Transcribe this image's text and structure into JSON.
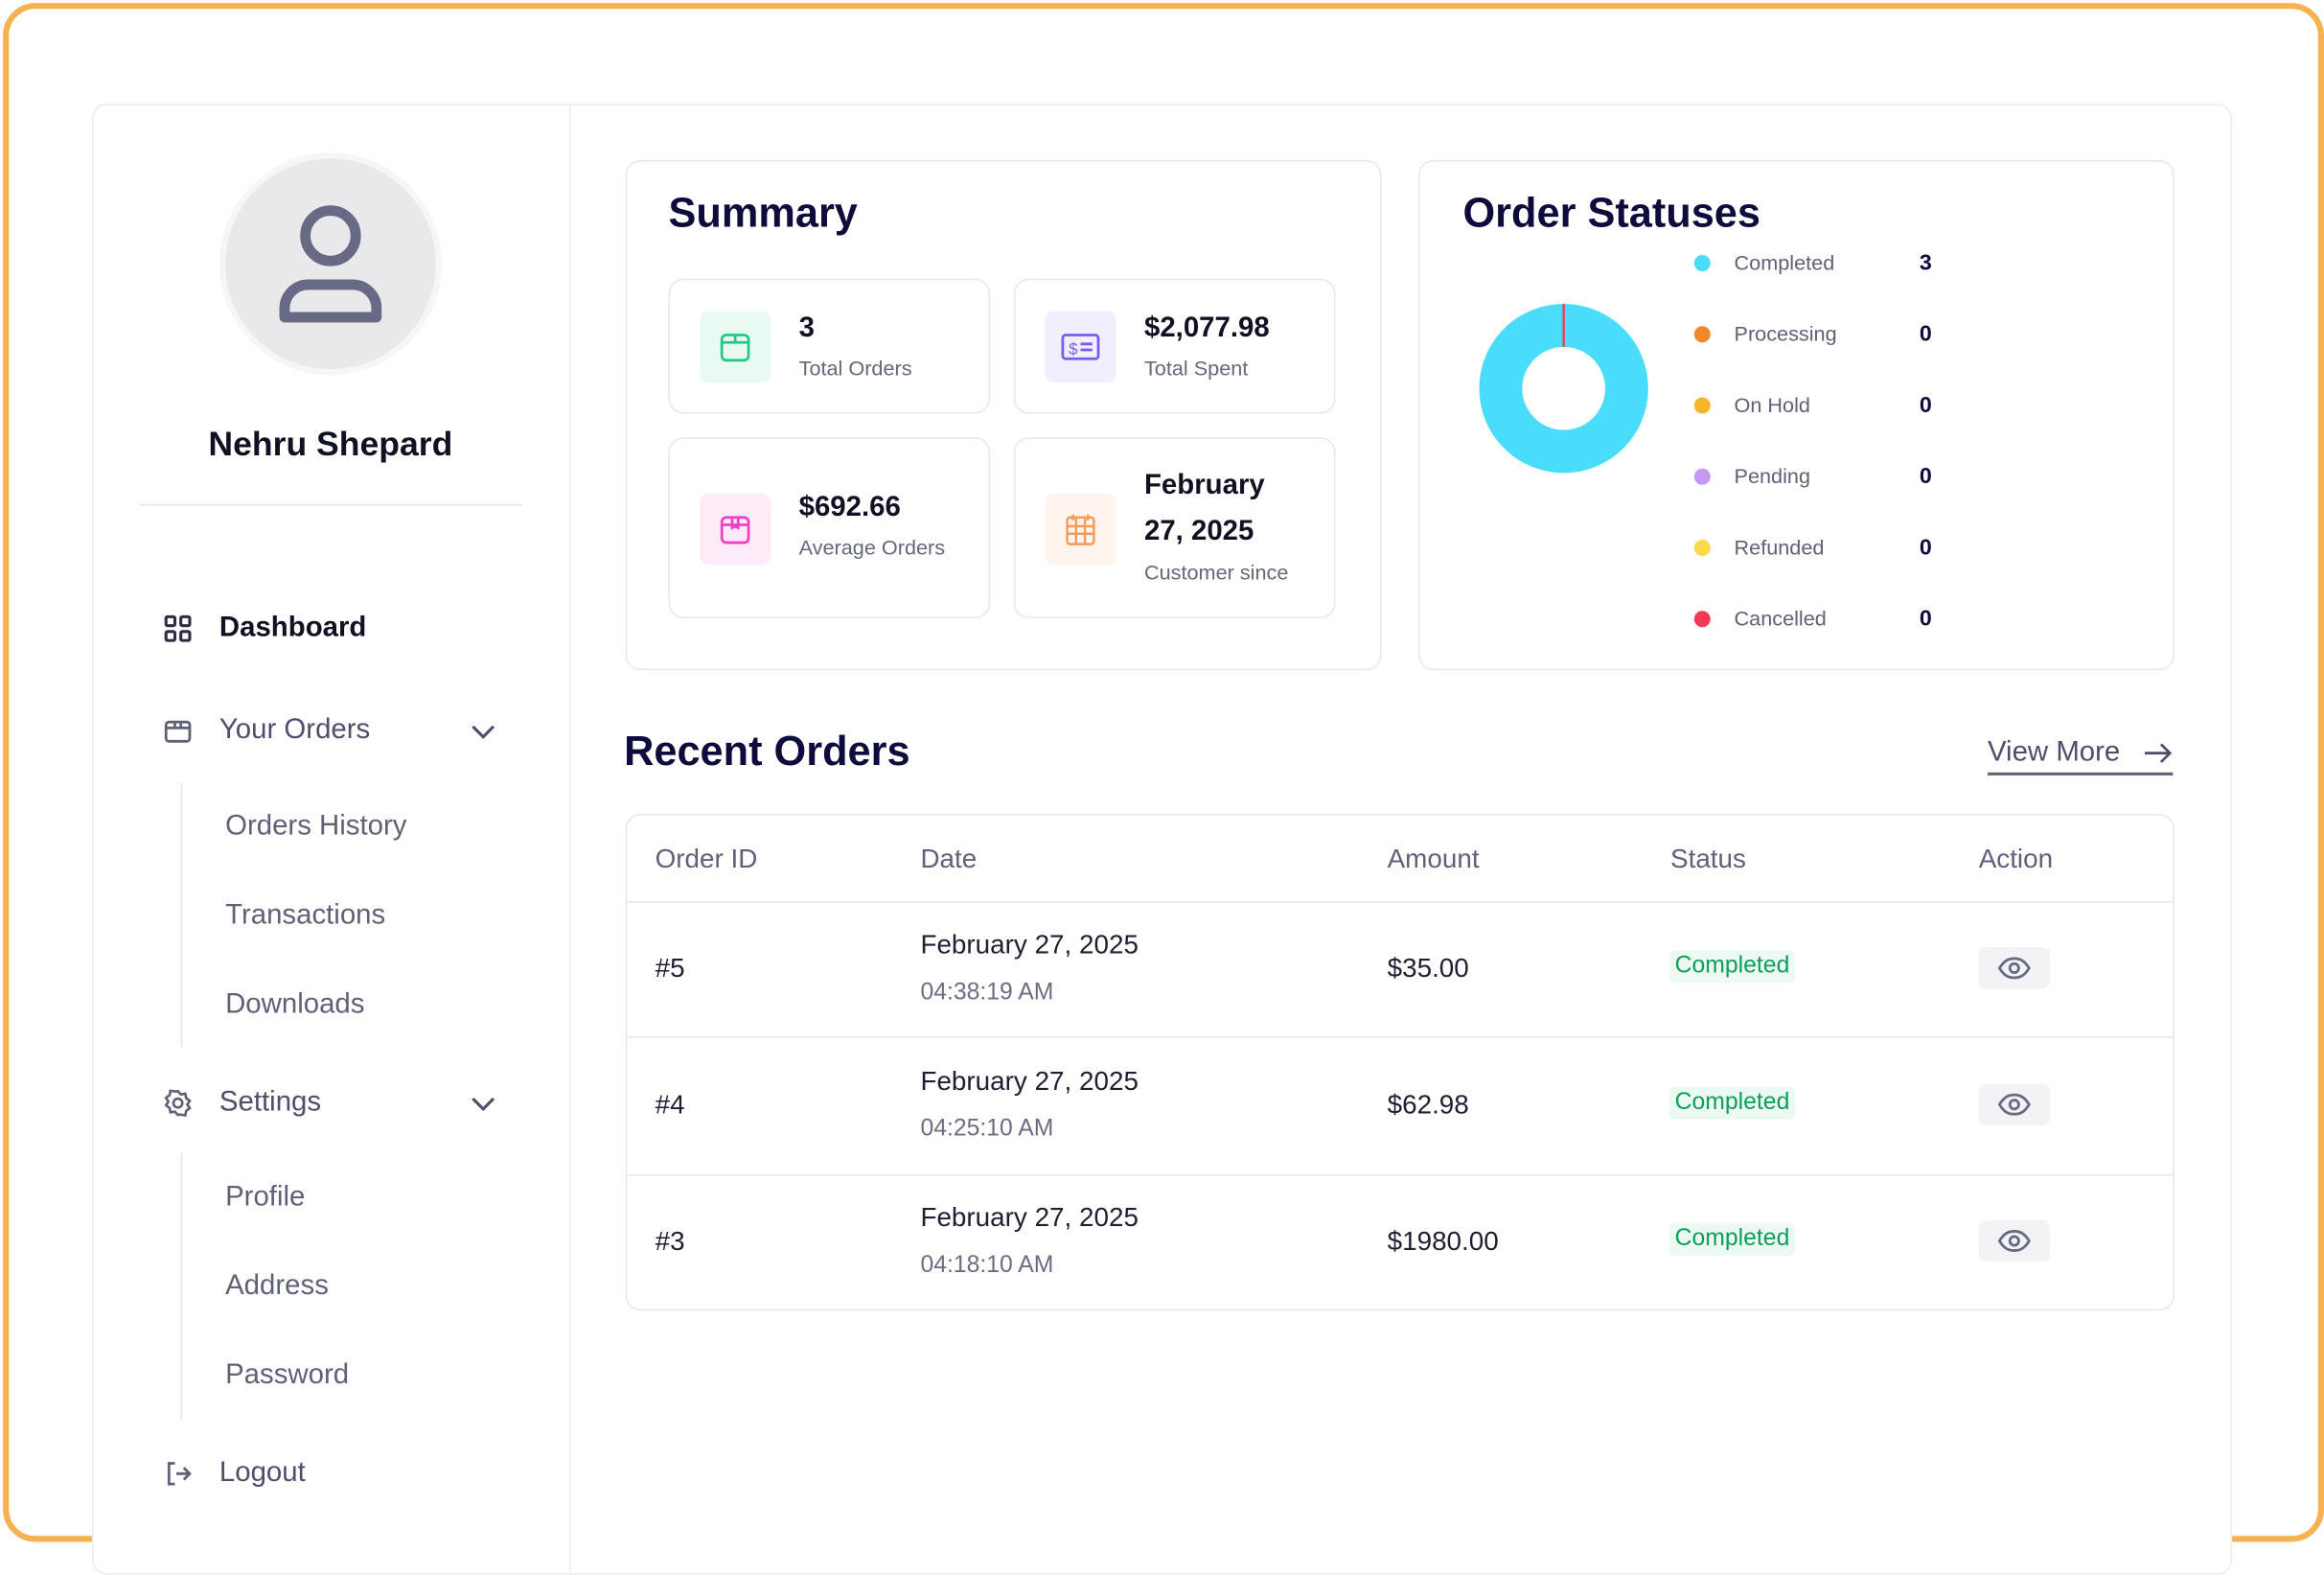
{
  "profile": {
    "name": "Nehru Shepard",
    "avatar_icon": "user-icon"
  },
  "sidebar": {
    "dashboard": "Dashboard",
    "your_orders": "Your Orders",
    "orders_sub": [
      "Orders History",
      "Transactions",
      "Downloads"
    ],
    "settings": "Settings",
    "settings_sub": [
      "Profile",
      "Address",
      "Password"
    ],
    "logout": "Logout"
  },
  "summary": {
    "title": "Summary",
    "stats": [
      {
        "value": "3",
        "label": "Total Orders",
        "icon": "box-icon",
        "color": "#22c98a",
        "bg": "#e8faf2"
      },
      {
        "value": "$2,077.98",
        "label": "Total Spent",
        "icon": "money-icon",
        "color": "#7b5cf0",
        "bg": "#f1eefe"
      },
      {
        "value": "$692.66",
        "label": "Average Orders",
        "icon": "package-icon",
        "color": "#f03ec8",
        "bg": "#fdebf8"
      },
      {
        "value_line1": "February",
        "value_line2": "27, 2025",
        "label": "Customer since",
        "icon": "calendar-icon",
        "color": "#f79a5a",
        "bg": "#fff5ee"
      }
    ]
  },
  "order_statuses": {
    "title": "Order Statuses",
    "chart_data": {
      "type": "pie",
      "donut": true,
      "categories": [
        "Completed",
        "Processing",
        "On Hold",
        "Pending",
        "Refunded",
        "Cancelled"
      ],
      "values": [
        3,
        0,
        0,
        0,
        0,
        0
      ],
      "colors": [
        "#49dcfb",
        "#f2882c",
        "#fbb328",
        "#c597f6",
        "#fdd84a",
        "#f43a55"
      ],
      "legend": "right"
    },
    "legend_values": [
      "3",
      "0",
      "0",
      "0",
      "0",
      "0"
    ]
  },
  "recent_orders": {
    "title": "Recent Orders",
    "view_more": "View More",
    "columns": [
      "Order ID",
      "Date",
      "Amount",
      "Status",
      "Action"
    ],
    "rows": [
      {
        "id": "#5",
        "date": "February 27, 2025",
        "time": "04:38:19 AM",
        "amount": "$35.00",
        "status": "Completed"
      },
      {
        "id": "#4",
        "date": "February 27, 2025",
        "time": "04:25:10 AM",
        "amount": "$62.98",
        "status": "Completed"
      },
      {
        "id": "#3",
        "date": "February 27, 2025",
        "time": "04:18:10 AM",
        "amount": "$1980.00",
        "status": "Completed"
      }
    ]
  }
}
